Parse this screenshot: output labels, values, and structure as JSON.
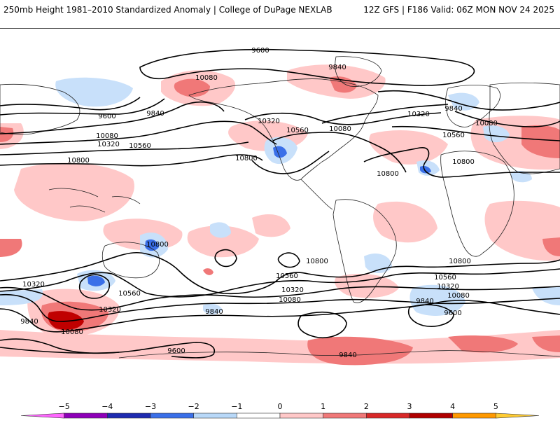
{
  "header": {
    "title": "250mb Height 1981–2010 Standardized Anomaly | College of DuPage NEXLAB",
    "run_info": "12Z GFS | F186 Valid: 06Z MON NOV 24 2025"
  },
  "colorbar": {
    "ticks": [
      "−5",
      "−4",
      "−3",
      "−2",
      "−1",
      "0",
      "1",
      "2",
      "3",
      "4",
      "5"
    ],
    "colors": [
      "#ff66ff",
      "#8e00b8",
      "#1e2bb0",
      "#3a6fe8",
      "#b8d8f8",
      "#ffffff",
      "#ffc8c8",
      "#f07878",
      "#d82828",
      "#b00000",
      "#ff9900",
      "#ffcc33"
    ]
  },
  "contours": {
    "c9600_n": "9600",
    "c9840_na": "9840",
    "c10080_pac": "10080",
    "c9600_w": "9600",
    "c9840_w": "9840",
    "c10080_w": "10080",
    "c10320_w": "10320",
    "c10560_w": "10560",
    "c10800_w": "10800",
    "c10320_na": "10320",
    "c10560_na": "10560",
    "c10080_na": "10080",
    "c10800_pac": "10800",
    "c10800_atl": "10800",
    "c10320_atl": "10320",
    "c9840_eu": "9840",
    "c10080_eu": "10080",
    "c10560_eu": "10560",
    "c10800_af": "10800",
    "c10800_aus": "10800",
    "c10800_sp": "10800",
    "c10800_io": "10800",
    "c10560_sp": "10560",
    "c10560_aus": "10560",
    "c10560_io": "10560",
    "c10320_sw": "10320",
    "c10320_aus": "10320",
    "c10320_sp": "10320",
    "c10320_io": "10320",
    "c10080_sp": "10080",
    "c10080_io": "10080",
    "c10080_sw": "10080",
    "c9840_sw": "9840",
    "c9840_sp": "9840",
    "c9840_io": "9840",
    "c9840_ant": "9840",
    "c9600_io": "9600",
    "c9600_s": "9600"
  }
}
